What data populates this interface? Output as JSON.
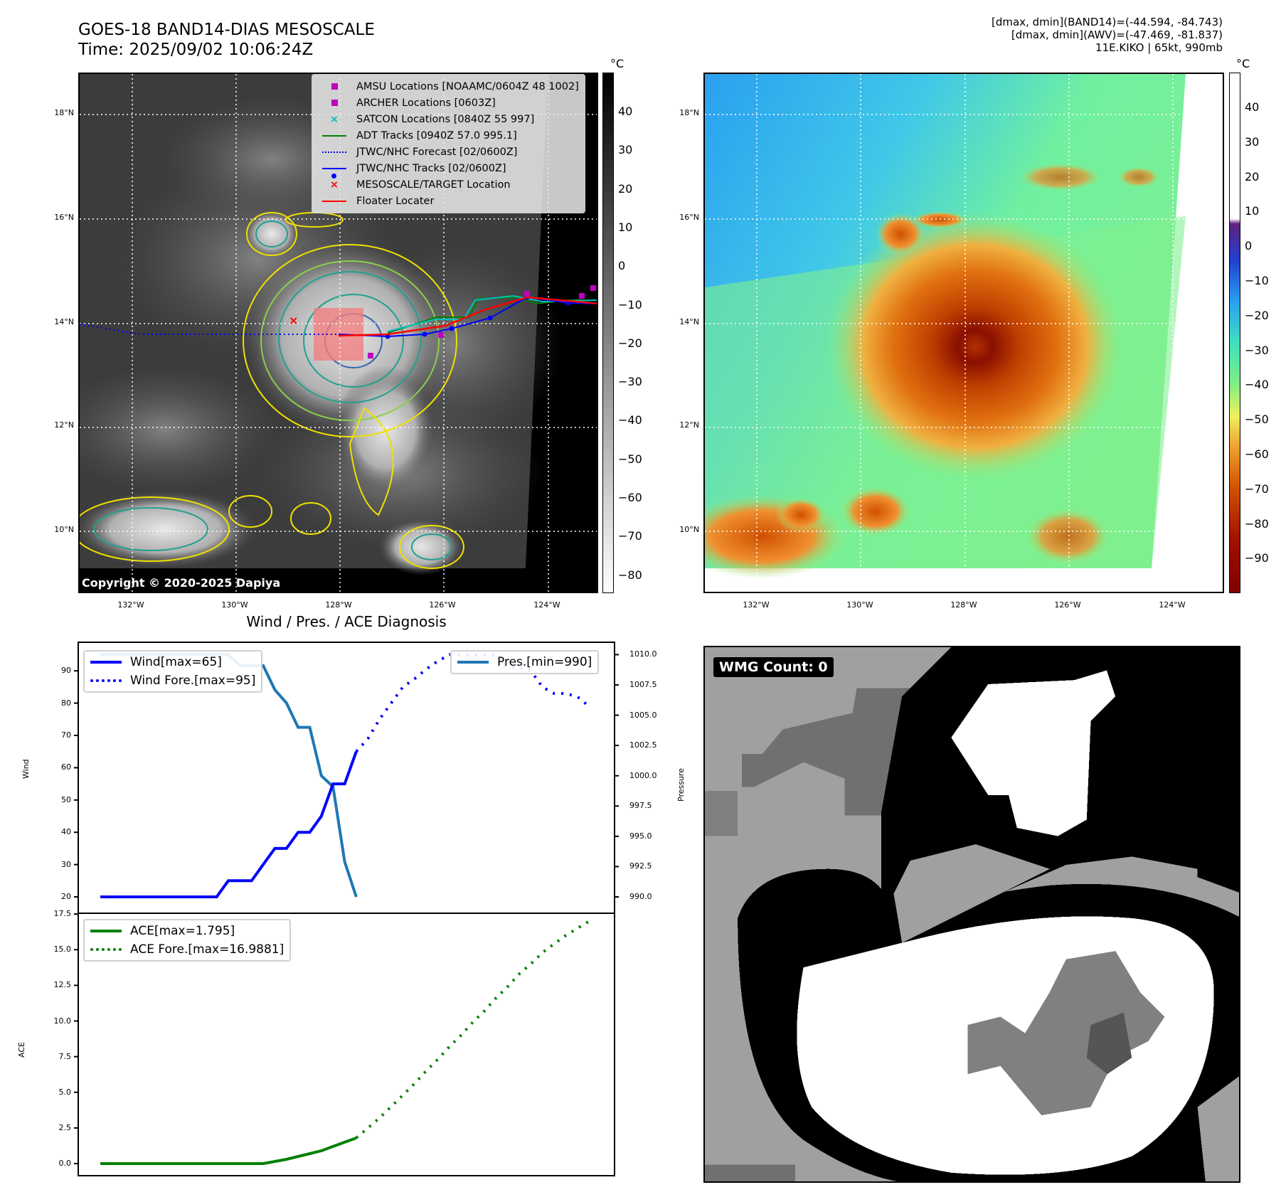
{
  "header": {
    "title_line1": "GOES-18 BAND14-DIAS MESOSCALE",
    "title_line2": "Time: 2025/09/02 10:06:24Z",
    "info_line1": "[dmax, dmin](BAND14)=(-44.594, -84.743)",
    "info_line2": "[dmax, dmin](AWV)=(-47.469, -81.837)",
    "info_line3": "11E.KIKO | 65kt, 990mb"
  },
  "maps": {
    "lon_ticks": [
      "132°W",
      "130°W",
      "128°W",
      "126°W",
      "124°W"
    ],
    "lat_ticks": [
      "18°N",
      "16°N",
      "14°N",
      "12°N",
      "10°N"
    ],
    "copyright": "Copyright © 2020-2025 Dapiya",
    "unit": "°C",
    "left_colorbar_ticks": [
      "40",
      "30",
      "20",
      "10",
      "0",
      "−10",
      "−20",
      "−30",
      "−40",
      "−50",
      "−60",
      "−70",
      "−80"
    ],
    "right_colorbar_ticks": [
      "40",
      "30",
      "20",
      "10",
      "0",
      "−10",
      "−20",
      "−30",
      "−40",
      "−50",
      "−60",
      "−70",
      "−80",
      "−90"
    ],
    "legend": [
      {
        "label": "AMSU Locations [NOAAMC/0604Z 48 1002]",
        "symbol": "square",
        "color": "#c000c0"
      },
      {
        "label": "ARCHER Locations [0603Z]",
        "symbol": "square",
        "color": "#c000c0"
      },
      {
        "label": "SATCON Locations [0840Z 55 997]",
        "symbol": "x",
        "color": "#00c0c0"
      },
      {
        "label": "ADT Tracks [0940Z 57.0 995.1]",
        "symbol": "line",
        "color": "#008000"
      },
      {
        "label": "JTWC/NHC Forecast [02/0600Z]",
        "symbol": "dotted",
        "color": "#0000ff"
      },
      {
        "label": "JTWC/NHC Tracks [02/0600Z]",
        "symbol": "line-dot",
        "color": "#0000ff"
      },
      {
        "label": "MESOSCALE/TARGET Location",
        "symbol": "x",
        "color": "#ff0000"
      },
      {
        "label": "Floater Locater",
        "symbol": "line",
        "color": "#ff0000"
      }
    ]
  },
  "wmg": {
    "label": "WMG Count: 0"
  },
  "chart_data": [
    {
      "type": "line",
      "title": "Wind / Pres. / ACE Diagnosis",
      "ylabel": "Wind",
      "ylabel_right": "Pressure",
      "ylim": [
        16,
        98
      ],
      "ylim_right": [
        989,
        1011
      ],
      "yticks": [
        "20",
        "30",
        "40",
        "50",
        "60",
        "70",
        "80",
        "90"
      ],
      "yticks_right": [
        "990.0",
        "992.5",
        "995.0",
        "997.5",
        "1000.0",
        "1002.5",
        "1005.0",
        "1007.5",
        "1010.0"
      ],
      "x_step_hours": 6,
      "series": [
        {
          "name": "Wind[max=65]",
          "axis": "left",
          "color": "#0000ff",
          "style": "solid",
          "x_start": 0,
          "values": [
            20,
            20,
            20,
            20,
            20,
            20,
            20,
            20,
            20,
            20,
            20,
            25,
            25,
            25,
            30,
            35,
            35,
            40,
            40,
            45,
            55,
            55,
            65
          ]
        },
        {
          "name": "Wind Fore.[max=95]",
          "axis": "left",
          "color": "#0000ff",
          "style": "dotted",
          "x_start": 22,
          "values": [
            65,
            69,
            75,
            80,
            85,
            87.5,
            90.5,
            93,
            95,
            95,
            95,
            95,
            95,
            91,
            91,
            90,
            85,
            83,
            83,
            82,
            79
          ]
        },
        {
          "name": "Pres.[min=990]",
          "axis": "right",
          "color": "#1f77b4",
          "style": "solid",
          "x_start": 0,
          "values": [
            1010,
            1010,
            1010,
            1010,
            1010,
            1010,
            1010,
            1010,
            1010,
            1010,
            1010,
            1010,
            1009.1,
            1009.1,
            1009.1,
            1007.1,
            1006,
            1004,
            1004,
            1000,
            999.1,
            992.9,
            990
          ]
        }
      ],
      "legend_left": [
        "Wind[max=65]",
        "Wind Fore.[max=95]"
      ],
      "legend_right": [
        "Pres.[min=990]"
      ]
    },
    {
      "type": "line",
      "ylabel": "ACE",
      "ylim": [
        -0.8,
        18.2
      ],
      "yticks": [
        "0.0",
        "2.5",
        "5.0",
        "7.5",
        "10.0",
        "12.5",
        "15.0",
        "17.5"
      ],
      "series": [
        {
          "name": "ACE[max=1.795]",
          "color": "#008000",
          "style": "solid",
          "x_start": 0,
          "values": [
            0,
            0,
            0,
            0,
            0,
            0,
            0,
            0,
            0,
            0,
            0,
            0,
            0,
            0,
            0,
            0.15,
            0.3,
            0.5,
            0.7,
            0.9,
            1.2,
            1.5,
            1.795
          ]
        },
        {
          "name": "ACE Fore.[max=16.9881]",
          "color": "#008000",
          "style": "dotted",
          "x_start": 22,
          "values": [
            1.8,
            2.5,
            3.2,
            4.0,
            4.8,
            5.6,
            6.5,
            7.3,
            8.2,
            9.0,
            9.9,
            10.7,
            11.6,
            12.4,
            13.3,
            14.0,
            14.8,
            15.4,
            16.0,
            16.5,
            16.99
          ]
        }
      ]
    }
  ]
}
